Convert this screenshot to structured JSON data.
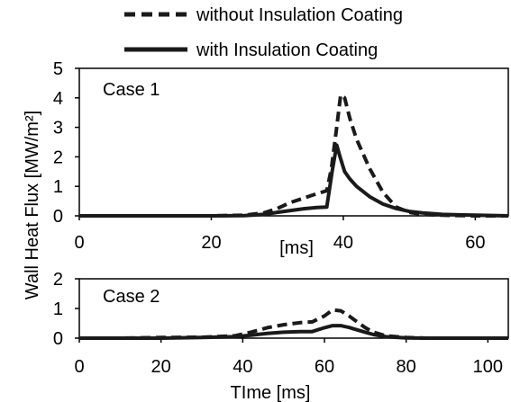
{
  "legend": [
    {
      "label": "without Insulation Coating",
      "style": "dashed"
    },
    {
      "label": "with Insulation Coating",
      "style": "solid"
    }
  ],
  "shared_ylabel": "Wall Heat Flux [MW/m²]",
  "chart_data": [
    {
      "type": "line",
      "title": "Case 1",
      "xlabel": "[ms]",
      "xlim": [
        0,
        65
      ],
      "ylim": [
        0,
        5
      ],
      "x_ticks": [
        0,
        20,
        40,
        60
      ],
      "y_ticks": [
        0,
        1,
        2,
        3,
        4,
        5
      ],
      "series": [
        {
          "name": "without Insulation Coating",
          "style": "dashed",
          "x": [
            0,
            10,
            20,
            25,
            28,
            30,
            32,
            34,
            36,
            37.5,
            38.2,
            39,
            39.6,
            40.2,
            41,
            42,
            44,
            46,
            48,
            50,
            52,
            55,
            60,
            65
          ],
          "y": [
            0,
            0,
            0,
            0.02,
            0.1,
            0.25,
            0.45,
            0.6,
            0.75,
            0.85,
            1.6,
            3.0,
            4.1,
            4.0,
            3.3,
            2.6,
            1.6,
            0.8,
            0.3,
            0.12,
            0.05,
            0.02,
            0,
            0
          ]
        },
        {
          "name": "with Insulation Coating",
          "style": "solid",
          "x": [
            0,
            10,
            20,
            25,
            28,
            30,
            32,
            34,
            36,
            37.5,
            38.3,
            39,
            39.5,
            40.2,
            41,
            42,
            44,
            46,
            48,
            50,
            52,
            55,
            60,
            65
          ],
          "y": [
            0,
            0,
            0,
            0.01,
            0.05,
            0.12,
            0.18,
            0.24,
            0.28,
            0.3,
            1.5,
            2.4,
            2.0,
            1.5,
            1.25,
            1.0,
            0.65,
            0.4,
            0.25,
            0.15,
            0.1,
            0.05,
            0.02,
            0
          ]
        }
      ]
    },
    {
      "type": "line",
      "title": "Case 2",
      "xlabel": "TIme [ms]",
      "xlim": [
        0,
        105
      ],
      "ylim": [
        0,
        2
      ],
      "x_ticks": [
        0,
        20,
        40,
        60,
        80,
        100
      ],
      "y_ticks": [
        0,
        1,
        2
      ],
      "series": [
        {
          "name": "without Insulation Coating",
          "style": "dashed",
          "x": [
            0,
            10,
            20,
            30,
            38,
            42,
            46,
            50,
            54,
            57,
            60,
            62,
            64,
            66,
            68,
            70,
            72,
            75,
            80,
            85,
            90,
            100,
            105
          ],
          "y": [
            0,
            0,
            0.02,
            0.03,
            0.08,
            0.2,
            0.35,
            0.45,
            0.52,
            0.55,
            0.75,
            0.95,
            0.92,
            0.75,
            0.55,
            0.35,
            0.2,
            0.08,
            0.02,
            0,
            0,
            0,
            0
          ]
        },
        {
          "name": "with Insulation Coating",
          "style": "solid",
          "x": [
            0,
            10,
            20,
            30,
            38,
            42,
            46,
            50,
            54,
            57,
            60,
            62,
            64,
            66,
            68,
            70,
            72,
            75,
            80,
            85,
            90,
            100,
            105
          ],
          "y": [
            0,
            0,
            0,
            0.02,
            0.05,
            0.1,
            0.16,
            0.2,
            0.22,
            0.22,
            0.35,
            0.42,
            0.42,
            0.36,
            0.28,
            0.2,
            0.12,
            0.05,
            0.01,
            0,
            0,
            0,
            0
          ]
        }
      ]
    }
  ]
}
